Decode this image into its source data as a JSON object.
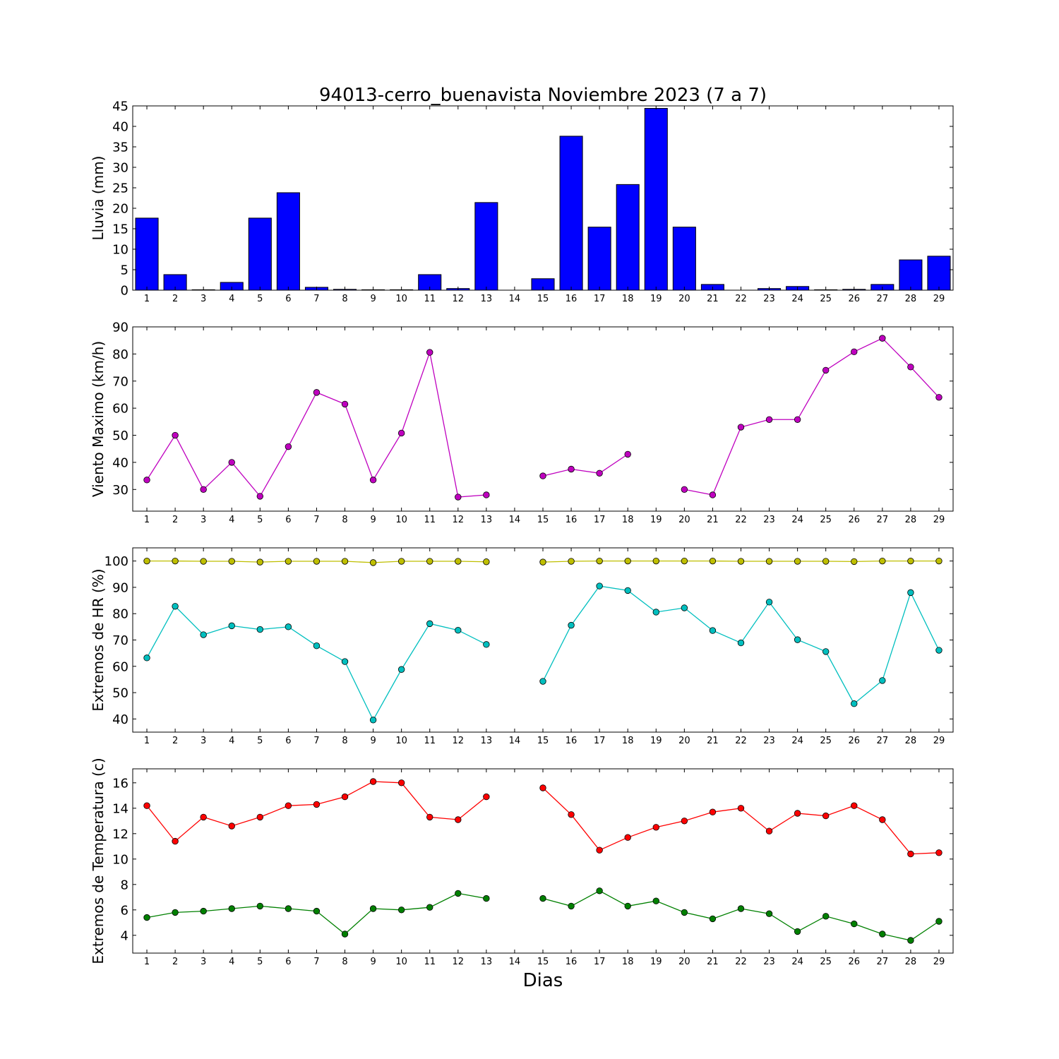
{
  "figure": {
    "title": "94013-cerro_buenavista Noviembre 2023  (7 a 7)",
    "xlabel": "Dias"
  },
  "chart_data": [
    {
      "type": "bar",
      "ylabel": "Lluvia (mm)",
      "ylim": [
        0,
        45
      ],
      "yticks": [
        0,
        5,
        10,
        15,
        20,
        25,
        30,
        35,
        40,
        45
      ],
      "xlim": [
        0.5,
        29.5
      ],
      "categories": [
        1,
        2,
        3,
        4,
        5,
        6,
        7,
        8,
        9,
        10,
        11,
        12,
        13,
        14,
        15,
        16,
        17,
        18,
        19,
        20,
        21,
        22,
        23,
        24,
        25,
        26,
        27,
        28,
        29
      ],
      "values": [
        17.6,
        3.8,
        0.1,
        1.9,
        17.6,
        23.8,
        0.7,
        0.2,
        0.1,
        0.1,
        3.8,
        0.4,
        21.4,
        0,
        2.8,
        37.6,
        15.4,
        25.8,
        44.4,
        15.4,
        1.4,
        0,
        0.4,
        0.9,
        0.1,
        0.2,
        1.4,
        7.4,
        8.3
      ],
      "color": "#0000ff"
    },
    {
      "type": "line",
      "ylabel": "Viento Maximo (km/h)",
      "ylim": [
        22,
        90
      ],
      "yticks": [
        30,
        40,
        50,
        60,
        70,
        80,
        90
      ],
      "xlim": [
        0.5,
        29.5
      ],
      "x": [
        1,
        2,
        3,
        4,
        5,
        6,
        7,
        8,
        9,
        10,
        11,
        12,
        13,
        14,
        15,
        16,
        17,
        18,
        19,
        20,
        21,
        22,
        23,
        24,
        25,
        26,
        27,
        28,
        29
      ],
      "series": [
        {
          "values": [
            33.5,
            50,
            30,
            40,
            27.5,
            45.8,
            65.8,
            61.5,
            33.5,
            50.8,
            80.6,
            27.2,
            28,
            null,
            35,
            37.5,
            36,
            43,
            null,
            30,
            28,
            53,
            55.8,
            55.8,
            74,
            80.8,
            85.8,
            75.2,
            64
          ],
          "color": "#bf00bf"
        }
      ]
    },
    {
      "type": "line",
      "ylabel": "Extremos de HR (%)",
      "ylim": [
        35,
        105
      ],
      "yticks": [
        40,
        50,
        60,
        70,
        80,
        90,
        100
      ],
      "xlim": [
        0.5,
        29.5
      ],
      "x": [
        1,
        2,
        3,
        4,
        5,
        6,
        7,
        8,
        9,
        10,
        11,
        12,
        13,
        14,
        15,
        16,
        17,
        18,
        19,
        20,
        21,
        22,
        23,
        24,
        25,
        26,
        27,
        28,
        29
      ],
      "series": [
        {
          "values": [
            100,
            100,
            99.9,
            99.9,
            99.6,
            99.9,
            99.9,
            99.9,
            99.4,
            99.9,
            99.9,
            99.9,
            99.7,
            null,
            99.6,
            99.9,
            100,
            100,
            100,
            100,
            100,
            99.9,
            99.9,
            99.9,
            99.9,
            99.8,
            100,
            100,
            100
          ],
          "color": "#bfbf00"
        },
        {
          "values": [
            63.2,
            82.8,
            72,
            75.4,
            74,
            75,
            67.8,
            61.8,
            39.6,
            58.8,
            76.2,
            73.7,
            68.3,
            null,
            54.3,
            75.6,
            90.5,
            88.8,
            80.6,
            82.2,
            73.6,
            68.9,
            84.4,
            70.1,
            65.6,
            45.8,
            54.6,
            88,
            66.1
          ],
          "color": "#00bfbf"
        }
      ]
    },
    {
      "type": "line",
      "ylabel": "Extremos de Temperatura (c)",
      "ylim": [
        2.6,
        17.1
      ],
      "yticks": [
        4,
        6,
        8,
        10,
        12,
        14,
        16
      ],
      "xlim": [
        0.5,
        29.5
      ],
      "x": [
        1,
        2,
        3,
        4,
        5,
        6,
        7,
        8,
        9,
        10,
        11,
        12,
        13,
        14,
        15,
        16,
        17,
        18,
        19,
        20,
        21,
        22,
        23,
        24,
        25,
        26,
        27,
        28,
        29
      ],
      "series": [
        {
          "values": [
            14.2,
            11.4,
            13.3,
            12.6,
            13.3,
            14.2,
            14.3,
            14.9,
            16.1,
            16,
            13.3,
            13.1,
            14.9,
            null,
            15.6,
            13.5,
            10.7,
            11.7,
            12.5,
            13,
            13.7,
            14,
            12.2,
            13.6,
            13.4,
            14.2,
            13.1,
            10.4,
            10.5
          ],
          "color": "#ff0000"
        },
        {
          "values": [
            5.4,
            5.8,
            5.9,
            6.1,
            6.3,
            6.1,
            5.9,
            4.1,
            6.1,
            6,
            6.2,
            7.3,
            6.9,
            null,
            6.9,
            6.3,
            7.5,
            6.3,
            6.7,
            5.8,
            5.3,
            6.1,
            5.7,
            4.3,
            5.5,
            4.9,
            4.1,
            3.6,
            5.1
          ],
          "color": "#008000"
        }
      ]
    }
  ]
}
